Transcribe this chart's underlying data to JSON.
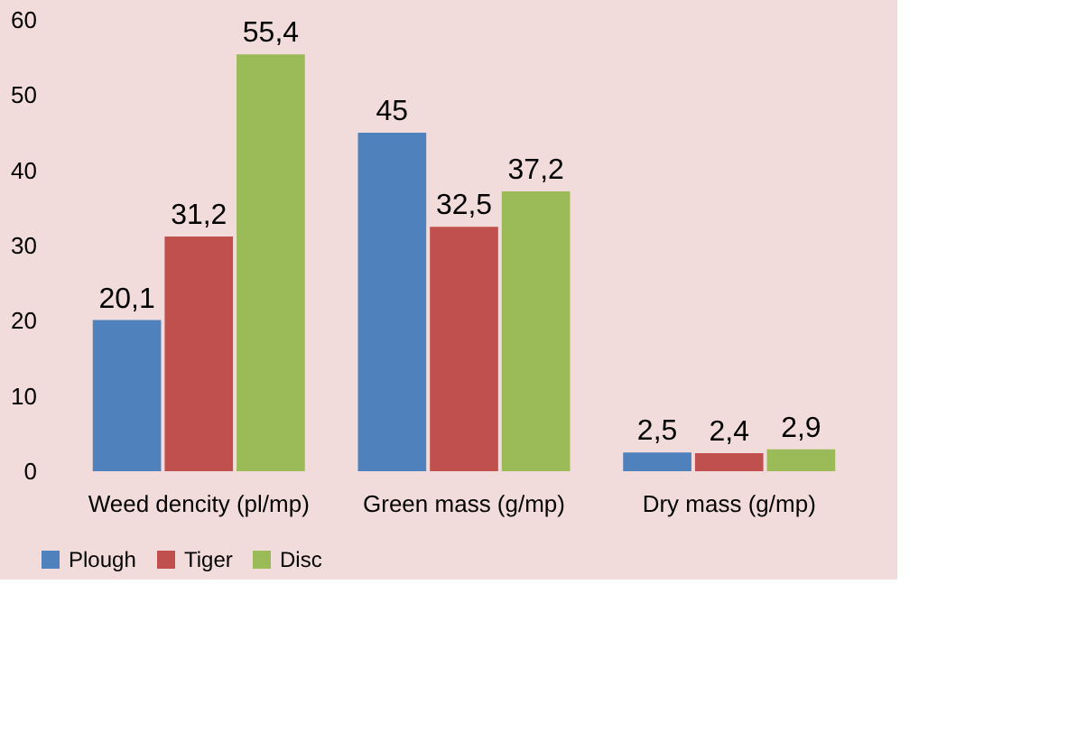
{
  "chart_data": {
    "type": "bar",
    "categories": [
      "Weed dencity (pl/mp)",
      "Green mass (g/mp)",
      "Dry mass (g/mp)"
    ],
    "series": [
      {
        "name": "Plough",
        "color": "#4f81bd",
        "values": [
          20.1,
          45,
          2.5
        ],
        "value_labels": [
          "20,1",
          "45",
          "2,5"
        ]
      },
      {
        "name": "Tiger",
        "color": "#c0504d",
        "values": [
          31.2,
          32.5,
          2.4
        ],
        "value_labels": [
          "31,2",
          "32,5",
          "2,4"
        ]
      },
      {
        "name": "Disc",
        "color": "#9bbb59",
        "values": [
          55.4,
          37.2,
          2.9
        ],
        "value_labels": [
          "55,4",
          "37,2",
          "2,9"
        ]
      }
    ],
    "ylim": [
      0,
      60
    ],
    "yticks": [
      0,
      10,
      20,
      30,
      40,
      50,
      60
    ],
    "grid": false,
    "legend": "bottom"
  }
}
